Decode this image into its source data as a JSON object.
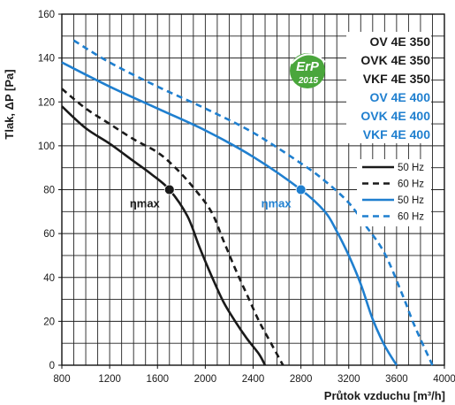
{
  "chart_data": {
    "type": "line",
    "xlabel": "Průtok vzduchu [m³/h]",
    "ylabel": "Tlak, ΔP [Pa]",
    "xlim": [
      800,
      4000
    ],
    "ylim": [
      0,
      160
    ],
    "x_ticks": [
      "800",
      "1200",
      "1600",
      "2000",
      "2400",
      "2800",
      "3200",
      "3600",
      "4000"
    ],
    "y_ticks": [
      "0",
      "20",
      "40",
      "60",
      "80",
      "100",
      "120",
      "140",
      "160"
    ],
    "grid": "on",
    "series": [
      {
        "name": "50 Hz",
        "color": "#1a1a1a",
        "style": "solid",
        "points": [
          [
            800,
            118
          ],
          [
            1000,
            108
          ],
          [
            1200,
            101
          ],
          [
            1400,
            93
          ],
          [
            1550,
            87
          ],
          [
            1700,
            80
          ],
          [
            1850,
            68
          ],
          [
            1950,
            54
          ],
          [
            2050,
            41
          ],
          [
            2150,
            29
          ],
          [
            2250,
            20
          ],
          [
            2350,
            12
          ],
          [
            2450,
            5
          ],
          [
            2500,
            0
          ]
        ]
      },
      {
        "name": "60 Hz",
        "color": "#1a1a1a",
        "style": "dashed",
        "points": [
          [
            800,
            126
          ],
          [
            1000,
            117
          ],
          [
            1200,
            110
          ],
          [
            1400,
            103
          ],
          [
            1600,
            97
          ],
          [
            1750,
            90
          ],
          [
            1900,
            81
          ],
          [
            2050,
            70
          ],
          [
            2150,
            57
          ],
          [
            2250,
            44
          ],
          [
            2350,
            32
          ],
          [
            2450,
            20
          ],
          [
            2550,
            10
          ],
          [
            2650,
            0
          ]
        ]
      },
      {
        "name": "50 Hz",
        "color": "#1f7fcf",
        "style": "solid",
        "points": [
          [
            800,
            138
          ],
          [
            1200,
            127
          ],
          [
            1600,
            117
          ],
          [
            2000,
            107
          ],
          [
            2400,
            95
          ],
          [
            2800,
            80
          ],
          [
            3000,
            70
          ],
          [
            3100,
            61
          ],
          [
            3200,
            50
          ],
          [
            3300,
            37
          ],
          [
            3400,
            21
          ],
          [
            3500,
            9
          ],
          [
            3600,
            0
          ]
        ]
      },
      {
        "name": "60 Hz",
        "color": "#1f7fcf",
        "style": "dashed",
        "points": [
          [
            900,
            148
          ],
          [
            1200,
            138
          ],
          [
            1600,
            127
          ],
          [
            2000,
            117
          ],
          [
            2400,
            106
          ],
          [
            2800,
            92
          ],
          [
            3000,
            84
          ],
          [
            3200,
            74
          ],
          [
            3350,
            63
          ],
          [
            3500,
            51
          ],
          [
            3650,
            32
          ],
          [
            3750,
            18
          ],
          [
            3900,
            0
          ]
        ]
      }
    ],
    "points_of_interest": [
      {
        "label": "ηmax",
        "x": 1700,
        "y": 80,
        "color": "#1a1a1a"
      },
      {
        "label": "ηmax",
        "x": 2800,
        "y": 80,
        "color": "#1f7fcf"
      }
    ],
    "model_labels": [
      {
        "text": "OV 4E 350",
        "color": "#1a1a1a"
      },
      {
        "text": "OVK 4E 350",
        "color": "#1a1a1a"
      },
      {
        "text": "VKF 4E 350",
        "color": "#1a1a1a"
      },
      {
        "text": "OV 4E 400",
        "color": "#1f7fcf"
      },
      {
        "text": "OVK 4E 400",
        "color": "#1f7fcf"
      },
      {
        "text": "VKF 4E 400",
        "color": "#1f7fcf"
      }
    ],
    "legend_position": "right",
    "badge": {
      "line1": "ErP",
      "line2": "2015",
      "color": "#4aa63c"
    }
  }
}
